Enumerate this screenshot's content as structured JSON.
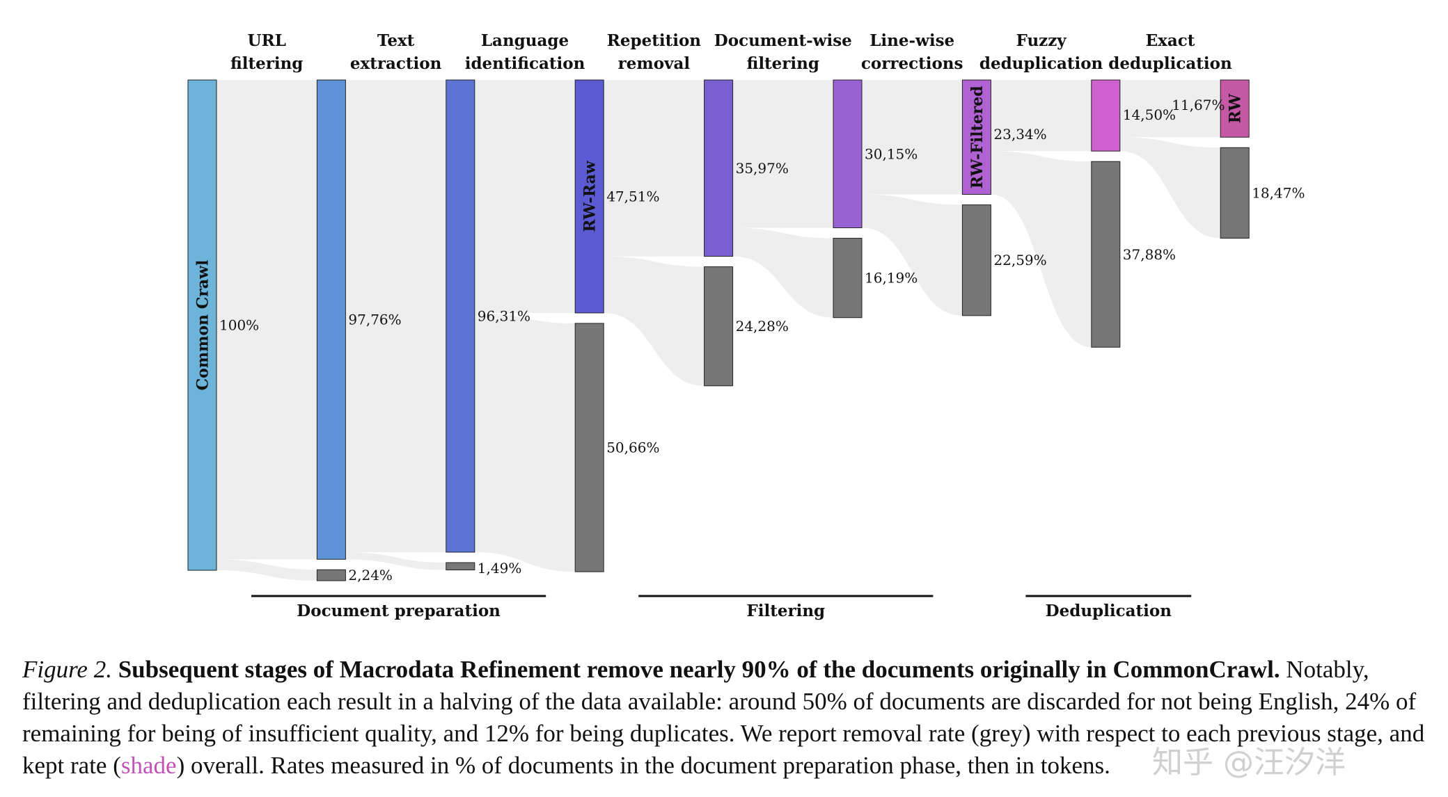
{
  "chart_data": {
    "type": "sankey",
    "stages": [
      {
        "name": "URL filtering"
      },
      {
        "name": "Text extraction"
      },
      {
        "name": "Language identification"
      },
      {
        "name": "Repetition removal"
      },
      {
        "name": "Document-wise filtering"
      },
      {
        "name": "Line-wise corrections"
      },
      {
        "name": "Fuzzy deduplication"
      },
      {
        "name": "Exact deduplication"
      }
    ],
    "stage_label_lines": [
      [
        "URL",
        "filtering"
      ],
      [
        "Text",
        "extraction"
      ],
      [
        "Language",
        "identification"
      ],
      [
        "Repetition",
        "removal"
      ],
      [
        "Document-wise",
        "filtering"
      ],
      [
        "Line-wise",
        "corrections"
      ],
      [
        "Fuzzy",
        "deduplication"
      ],
      [
        "Exact",
        "deduplication"
      ]
    ],
    "kept_nodes": [
      {
        "name": "Common Crawl",
        "value": 100,
        "label": "100%"
      },
      {
        "name": "",
        "value": 97.76,
        "label": "97,76%"
      },
      {
        "name": "",
        "value": 96.31,
        "label": "96,31%"
      },
      {
        "name": "RW-Raw",
        "value": 47.51,
        "label": "47,51%"
      },
      {
        "name": "",
        "value": 35.97,
        "label": "35,97%"
      },
      {
        "name": "",
        "value": 30.15,
        "label": "30,15%"
      },
      {
        "name": "RW-Filtered",
        "value": 23.34,
        "label": "23,34%"
      },
      {
        "name": "",
        "value": 14.5,
        "label": "14,50%"
      },
      {
        "name": "RW",
        "value": 11.67,
        "label": "11,67%"
      }
    ],
    "removed_nodes": [
      {
        "value": 2.24,
        "label": "2,24%"
      },
      {
        "value": 1.49,
        "label": "1,49%"
      },
      {
        "value": 50.66,
        "label": "50,66%"
      },
      {
        "value": 24.28,
        "label": "24,28%"
      },
      {
        "value": 16.19,
        "label": "16,19%"
      },
      {
        "value": 22.59,
        "label": "22,59%"
      },
      {
        "value": 37.88,
        "label": "37,88%"
      },
      {
        "value": 18.47,
        "label": "18,47%"
      }
    ],
    "groups": [
      {
        "name": "Document preparation",
        "from": 0,
        "to": 3
      },
      {
        "name": "Filtering",
        "from": 3,
        "to": 6
      },
      {
        "name": "Deduplication",
        "from": 6,
        "to": 8
      }
    ],
    "colors": {
      "kept": [
        "#6cb4d9",
        "#5e93d8",
        "#5b74d6",
        "#5c5bd4",
        "#7a5fd3",
        "#9962d2",
        "#b162d2",
        "#cd62cf",
        "#c659a6"
      ],
      "removed": "#777777",
      "flow": "#eeeeee"
    }
  },
  "caption": {
    "figure_label": "Figure 2.",
    "bold_text": "Subsequent stages of Macrodata Refinement remove nearly 90% of the documents originally in CommonCrawl.",
    "text_part1": "Notably, filtering and deduplication each result in a halving of the data available: around 50% of documents are discarded for not being English, 24% of remaining for being of insufficient quality, and 12% for being duplicates. We report removal rate (",
    "grey_word": "grey",
    "text_part2": ") with respect to each previous stage, and kept rate (",
    "shade_word": "shade",
    "text_part3": ") overall. Rates measured in % of documents in the document preparation phase, then in tokens."
  },
  "watermark": "知乎 @汪汐洋"
}
